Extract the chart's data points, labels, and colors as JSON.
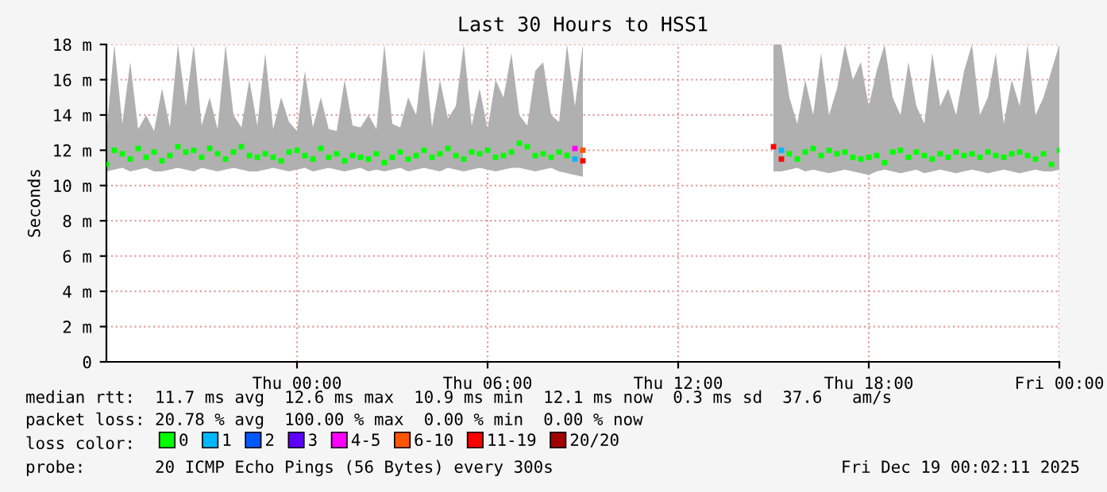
{
  "chart_data": {
    "type": "scatter",
    "title": "Last 30 Hours to HSS1",
    "ylabel": "Seconds",
    "x": [
      "2025-12-17T18:00",
      "2025-12-17T18:15",
      "2025-12-17T18:30",
      "2025-12-17T18:45",
      "2025-12-17T19:00",
      "2025-12-17T19:15",
      "2025-12-17T19:30",
      "2025-12-17T19:45",
      "2025-12-17T20:00",
      "2025-12-17T20:15",
      "2025-12-17T20:30",
      "2025-12-17T20:45",
      "2025-12-17T21:00",
      "2025-12-17T21:15",
      "2025-12-17T21:30",
      "2025-12-17T21:45",
      "2025-12-17T22:00",
      "2025-12-17T22:15",
      "2025-12-17T22:30",
      "2025-12-17T22:45",
      "2025-12-17T23:00",
      "2025-12-17T23:15",
      "2025-12-17T23:30",
      "2025-12-17T23:45",
      "2025-12-18T00:00",
      "2025-12-18T00:15",
      "2025-12-18T00:30",
      "2025-12-18T00:45",
      "2025-12-18T01:00",
      "2025-12-18T01:15",
      "2025-12-18T01:30",
      "2025-12-18T01:45",
      "2025-12-18T02:00",
      "2025-12-18T02:15",
      "2025-12-18T02:30",
      "2025-12-18T02:45",
      "2025-12-18T03:00",
      "2025-12-18T03:15",
      "2025-12-18T03:30",
      "2025-12-18T03:45",
      "2025-12-18T04:00",
      "2025-12-18T04:15",
      "2025-12-18T04:30",
      "2025-12-18T04:45",
      "2025-12-18T05:00",
      "2025-12-18T05:15",
      "2025-12-18T05:30",
      "2025-12-18T05:45",
      "2025-12-18T06:00",
      "2025-12-18T06:15",
      "2025-12-18T06:30",
      "2025-12-18T06:45",
      "2025-12-18T07:00",
      "2025-12-18T07:15",
      "2025-12-18T07:30",
      "2025-12-18T07:45",
      "2025-12-18T08:00",
      "2025-12-18T08:15",
      "2025-12-18T08:30",
      "2025-12-18T08:45",
      "2025-12-18T09:00",
      "2025-12-18T12:00",
      "2025-12-18T15:00",
      "2025-12-18T15:15",
      "2025-12-18T15:30",
      "2025-12-18T15:45",
      "2025-12-18T16:00",
      "2025-12-18T16:15",
      "2025-12-18T16:30",
      "2025-12-18T16:45",
      "2025-12-18T17:00",
      "2025-12-18T17:15",
      "2025-12-18T17:30",
      "2025-12-18T17:45",
      "2025-12-18T18:00",
      "2025-12-18T18:15",
      "2025-12-18T18:30",
      "2025-12-18T18:45",
      "2025-12-18T19:00",
      "2025-12-18T19:15",
      "2025-12-18T19:30",
      "2025-12-18T19:45",
      "2025-12-18T20:00",
      "2025-12-18T20:15",
      "2025-12-18T20:30",
      "2025-12-18T20:45",
      "2025-12-18T21:00",
      "2025-12-18T21:15",
      "2025-12-18T21:30",
      "2025-12-18T21:45",
      "2025-12-18T22:00",
      "2025-12-18T22:15",
      "2025-12-18T22:30",
      "2025-12-18T22:45",
      "2025-12-18T23:00",
      "2025-12-18T23:15",
      "2025-12-18T23:30",
      "2025-12-18T23:45",
      "2025-12-19T00:00"
    ],
    "series": [
      {
        "name": "0",
        "color": "#00ff00",
        "values": [
          11.2,
          12.0,
          11.8,
          11.5,
          12.1,
          11.6,
          11.9,
          11.4,
          11.7,
          12.2,
          11.9,
          12.0,
          11.6,
          12.1,
          11.8,
          11.5,
          11.9,
          12.2,
          11.7,
          11.6,
          11.8,
          11.6,
          11.4,
          11.9,
          12.0,
          11.7,
          11.5,
          12.1,
          11.6,
          11.8,
          11.4,
          11.7,
          11.6,
          11.5,
          11.8,
          11.3,
          11.6,
          11.9,
          11.5,
          11.7,
          12.0,
          11.6,
          11.8,
          12.1,
          11.7,
          11.5,
          11.9,
          11.8,
          12.0,
          11.6,
          11.7,
          11.9,
          12.4,
          12.2,
          11.7,
          11.8,
          11.6,
          11.9,
          11.7,
          null,
          null,
          null,
          null,
          null,
          11.8,
          11.5,
          11.9,
          12.1,
          11.7,
          12.0,
          11.8,
          11.9,
          11.6,
          11.5,
          11.6,
          11.7,
          11.3,
          11.9,
          12.0,
          11.6,
          11.9,
          11.7,
          11.5,
          11.8,
          11.6,
          11.9,
          11.7,
          11.8,
          11.6,
          11.9,
          11.7,
          11.6,
          11.8,
          11.9,
          11.7,
          11.5,
          11.8,
          11.2,
          12.0
        ],
        "lower": [
          10.8,
          10.9,
          11.0,
          10.8,
          10.9,
          11.0,
          10.8,
          10.8,
          10.9,
          11.0,
          10.9,
          10.8,
          11.0,
          10.9,
          10.8,
          10.9,
          11.0,
          10.9,
          10.8,
          10.8,
          10.9,
          11.0,
          10.9,
          10.8,
          10.9,
          11.0,
          10.8,
          10.9,
          11.0,
          10.9,
          10.8,
          10.9,
          11.0,
          10.8,
          10.9,
          10.8,
          10.9,
          11.0,
          10.8,
          10.9,
          11.0,
          10.9,
          10.8,
          11.0,
          10.9,
          10.8,
          10.9,
          11.0,
          10.9,
          10.8,
          10.9,
          11.0,
          11.0,
          10.9,
          10.8,
          10.9,
          11.0,
          10.8,
          10.7,
          10.6,
          10.5,
          null,
          10.8,
          10.8,
          10.9,
          11.0,
          10.8,
          10.9,
          10.8,
          10.7,
          10.8,
          10.9,
          10.8,
          10.7,
          10.6,
          10.8,
          10.9,
          10.8,
          10.7,
          10.8,
          10.9,
          10.7,
          10.8,
          10.9,
          10.8,
          10.7,
          10.8,
          10.9,
          10.8,
          10.7,
          10.8,
          10.9,
          10.8,
          10.7,
          10.8,
          10.9,
          10.8,
          10.8,
          10.9
        ],
        "upper": [
          13.0,
          18.0,
          13.5,
          17.0,
          13.2,
          14.0,
          13.1,
          15.5,
          13.3,
          18.0,
          14.5,
          18.0,
          13.4,
          15.0,
          13.2,
          18.0,
          14.0,
          13.3,
          16.0,
          13.4,
          17.5,
          13.2,
          15.0,
          13.6,
          13.1,
          16.5,
          13.3,
          15.0,
          13.2,
          13.1,
          16.0,
          13.4,
          13.3,
          14.0,
          13.2,
          18.0,
          13.5,
          13.3,
          15.0,
          14.0,
          17.8,
          13.3,
          16.0,
          13.8,
          14.5,
          18.0,
          13.4,
          15.5,
          13.2,
          16.0,
          15.0,
          17.5,
          14.0,
          13.4,
          16.5,
          17.0,
          14.0,
          13.6,
          18.0,
          14.5,
          18.0,
          null,
          18.0,
          18.0,
          15.0,
          13.5,
          16.0,
          14.0,
          17.5,
          14.0,
          15.5,
          18.0,
          16.0,
          17.0,
          14.5,
          16.5,
          18.0,
          15.0,
          14.0,
          17.0,
          14.5,
          13.5,
          17.5,
          14.5,
          15.5,
          14.0,
          16.5,
          18.0,
          14.0,
          15.0,
          17.5,
          13.5,
          16.0,
          14.5,
          18.0,
          14.0,
          15.0,
          16.5,
          18.0
        ]
      },
      {
        "name": "1",
        "color": "#00b8ff",
        "values": [
          null,
          null,
          null,
          null,
          null,
          null,
          null,
          null,
          null,
          null,
          null,
          null,
          null,
          null,
          null,
          null,
          null,
          null,
          null,
          null,
          null,
          null,
          null,
          null,
          null,
          null,
          null,
          null,
          null,
          null,
          null,
          null,
          null,
          null,
          null,
          null,
          null,
          null,
          null,
          null,
          null,
          null,
          null,
          null,
          null,
          null,
          null,
          null,
          null,
          null,
          null,
          null,
          null,
          null,
          null,
          null,
          null,
          null,
          null,
          11.5,
          null,
          null,
          null,
          12.0,
          null,
          null,
          null,
          null,
          null,
          null,
          null,
          null,
          null,
          null,
          null,
          null,
          null,
          null,
          null,
          null,
          null,
          null,
          null,
          null,
          null,
          null,
          null,
          null,
          null,
          null,
          null,
          null,
          null,
          null,
          null,
          null,
          null,
          null,
          null
        ]
      },
      {
        "name": "2",
        "color": "#0059ff",
        "values": [
          null,
          null,
          null,
          null,
          null,
          null,
          null,
          null,
          null,
          null,
          null,
          null,
          null,
          null,
          null,
          null,
          null,
          null,
          null,
          null,
          null,
          null,
          null,
          null,
          null,
          null,
          null,
          null,
          null,
          null,
          null,
          null,
          null,
          null,
          null,
          null,
          null,
          null,
          null,
          null,
          null,
          null,
          null,
          null,
          null,
          null,
          null,
          null,
          null,
          null,
          null,
          null,
          null,
          null,
          null,
          null,
          null,
          null,
          null,
          null,
          null,
          null,
          null,
          null,
          null,
          null,
          null,
          null,
          null,
          null,
          null,
          null,
          null,
          null,
          null,
          null,
          null,
          null,
          null,
          null,
          null,
          null,
          null,
          null,
          null,
          null,
          null,
          null,
          null,
          null,
          null,
          null,
          null,
          null,
          null,
          null,
          null,
          null,
          null
        ]
      },
      {
        "name": "3",
        "color": "#5e00ff",
        "values": [
          null,
          null,
          null,
          null,
          null,
          null,
          null,
          null,
          null,
          null,
          null,
          null,
          null,
          null,
          null,
          null,
          null,
          null,
          null,
          null,
          null,
          null,
          null,
          null,
          null,
          null,
          null,
          null,
          null,
          null,
          null,
          null,
          null,
          null,
          null,
          null,
          null,
          null,
          null,
          null,
          null,
          null,
          null,
          null,
          null,
          null,
          null,
          null,
          null,
          null,
          null,
          null,
          null,
          null,
          null,
          null,
          null,
          null,
          null,
          null,
          null,
          null,
          null,
          null,
          null,
          null,
          null,
          null,
          null,
          null,
          null,
          null,
          null,
          null,
          null,
          null,
          null,
          null,
          null,
          null,
          null,
          null,
          null,
          null,
          null,
          null,
          null,
          null,
          null,
          null,
          null,
          null,
          null,
          null,
          null,
          null,
          null,
          null,
          null
        ]
      },
      {
        "name": "4-5",
        "color": "#ff00ff",
        "values": [
          null,
          null,
          null,
          null,
          null,
          null,
          null,
          null,
          null,
          null,
          null,
          null,
          null,
          null,
          null,
          null,
          null,
          null,
          null,
          null,
          null,
          null,
          null,
          null,
          null,
          null,
          null,
          null,
          null,
          null,
          null,
          null,
          null,
          null,
          null,
          null,
          null,
          null,
          null,
          null,
          null,
          null,
          null,
          null,
          null,
          null,
          null,
          null,
          null,
          null,
          null,
          null,
          null,
          null,
          null,
          null,
          null,
          null,
          null,
          12.1,
          null,
          null,
          null,
          null,
          null,
          null,
          null,
          null,
          null,
          null,
          null,
          null,
          null,
          null,
          null,
          null,
          null,
          null,
          null,
          null,
          null,
          null,
          null,
          null,
          null,
          null,
          null,
          null,
          null,
          null,
          null,
          null,
          null,
          null,
          null,
          null,
          null,
          null,
          null
        ]
      },
      {
        "name": "6-10",
        "color": "#ff5500",
        "values": [
          null,
          null,
          null,
          null,
          null,
          null,
          null,
          null,
          null,
          null,
          null,
          null,
          null,
          null,
          null,
          null,
          null,
          null,
          null,
          null,
          null,
          null,
          null,
          null,
          null,
          null,
          null,
          null,
          null,
          null,
          null,
          null,
          null,
          null,
          null,
          null,
          null,
          null,
          null,
          null,
          null,
          null,
          null,
          null,
          null,
          null,
          null,
          null,
          null,
          null,
          null,
          null,
          null,
          null,
          null,
          null,
          null,
          null,
          null,
          null,
          12.0,
          null,
          null,
          null,
          null,
          null,
          null,
          null,
          null,
          null,
          null,
          null,
          null,
          null,
          null,
          null,
          null,
          null,
          null,
          null,
          null,
          null,
          null,
          null,
          null,
          null,
          null,
          null,
          null,
          null,
          null,
          null,
          null,
          null,
          null,
          null,
          null,
          null,
          null
        ]
      },
      {
        "name": "11-19",
        "color": "#ff0000",
        "values": [
          null,
          null,
          null,
          null,
          null,
          null,
          null,
          null,
          null,
          null,
          null,
          null,
          null,
          null,
          null,
          null,
          null,
          null,
          null,
          null,
          null,
          null,
          null,
          null,
          null,
          null,
          null,
          null,
          null,
          null,
          null,
          null,
          null,
          null,
          null,
          null,
          null,
          null,
          null,
          null,
          null,
          null,
          null,
          null,
          null,
          null,
          null,
          null,
          null,
          null,
          null,
          null,
          null,
          null,
          null,
          null,
          null,
          null,
          null,
          null,
          11.4,
          null,
          12.2,
          11.5,
          null,
          null,
          null,
          null,
          null,
          null,
          null,
          null,
          null,
          null,
          null,
          null,
          null,
          null,
          null,
          null,
          null,
          null,
          null,
          null,
          null,
          null,
          null,
          null,
          null,
          null,
          null,
          null,
          null,
          null,
          null,
          null,
          null,
          null,
          null
        ]
      },
      {
        "name": "20/20",
        "color": "#a10000",
        "values": [
          null,
          null,
          null,
          null,
          null,
          null,
          null,
          null,
          null,
          null,
          null,
          null,
          null,
          null,
          null,
          null,
          null,
          null,
          null,
          null,
          null,
          null,
          null,
          null,
          null,
          null,
          null,
          null,
          null,
          null,
          null,
          null,
          null,
          null,
          null,
          null,
          null,
          null,
          null,
          null,
          null,
          null,
          null,
          null,
          null,
          null,
          null,
          null,
          null,
          null,
          null,
          null,
          null,
          null,
          null,
          null,
          null,
          null,
          null,
          null,
          null,
          null,
          null,
          null,
          null,
          null,
          null,
          null,
          null,
          null,
          null,
          null,
          null,
          null,
          null,
          null,
          null,
          null,
          null,
          null,
          null,
          null,
          null,
          null,
          null,
          null,
          null,
          null,
          null,
          null,
          null,
          null,
          null,
          null,
          null,
          null,
          null,
          null,
          null
        ]
      }
    ],
    "xlim": [
      "2025-12-17T18:00",
      "2025-12-19T00:00"
    ],
    "xticks": [
      {
        "value": "2025-12-18T00:00",
        "label": "Thu 00:00"
      },
      {
        "value": "2025-12-18T06:00",
        "label": "Thu 06:00"
      },
      {
        "value": "2025-12-18T12:00",
        "label": "Thu 12:00"
      },
      {
        "value": "2025-12-18T18:00",
        "label": "Thu 18:00"
      },
      {
        "value": "2025-12-19T00:00",
        "label": "Fri 00:00"
      }
    ],
    "ylim": [
      0,
      18
    ],
    "yticks": [
      {
        "value": 0,
        "label": "0"
      },
      {
        "value": 2,
        "label": "2 m"
      },
      {
        "value": 4,
        "label": "4 m"
      },
      {
        "value": 6,
        "label": "6 m"
      },
      {
        "value": 8,
        "label": "8 m"
      },
      {
        "value": 10,
        "label": "10 m"
      },
      {
        "value": 12,
        "label": "12 m"
      },
      {
        "value": 14,
        "label": "14 m"
      },
      {
        "value": 16,
        "label": "16 m"
      },
      {
        "value": 18,
        "label": "18 m"
      }
    ],
    "grid": true,
    "marker": "square",
    "legend": "bottom",
    "annotations": [
      "median rtt:  11.7 ms avg  12.6 ms max  10.9 ms min  12.1 ms now  0.3 ms sd  37.6   am/s",
      "packet loss: 20.78 % avg  100.00 % max  0.00 % min  0.00 % now",
      "loss color:",
      "probe:       20 ICMP Echo Pings (56 Bytes) every 300s",
      "Fri Dec 19 00:02:11 2025"
    ]
  }
}
